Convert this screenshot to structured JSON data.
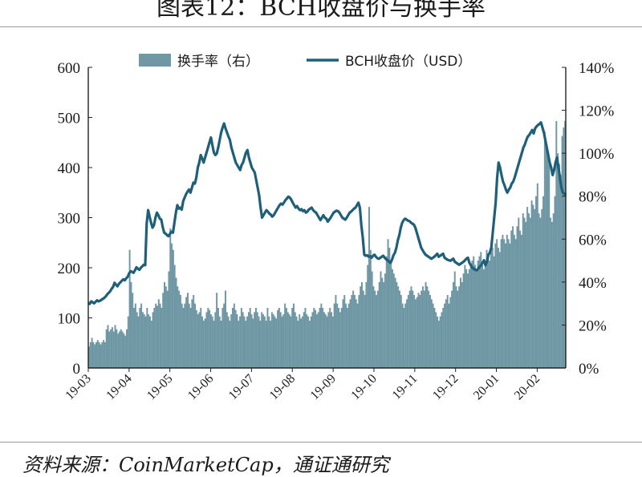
{
  "header": {
    "title": "图表12：BCH收盘价与换手率"
  },
  "footer": {
    "source": "资料来源：CoinMarketCap，通证通研究"
  },
  "chart_data": {
    "type": "bar+line",
    "title": "图表12：BCH收盘价与换手率",
    "legend_placement": "top",
    "x_ticks": [
      "19-03",
      "19-04",
      "19-05",
      "19-06",
      "19-07",
      "19-08",
      "19-09",
      "19-10",
      "19-11",
      "19-12",
      "20-01",
      "20-02"
    ],
    "y_left": {
      "ticks": [
        "0",
        "100",
        "200",
        "300",
        "400",
        "500",
        "600"
      ],
      "range": [
        0,
        600
      ]
    },
    "y_right": {
      "ticks": [
        "0%",
        "20%",
        "40%",
        "60%",
        "80%",
        "100%",
        "120%",
        "140%"
      ],
      "range": [
        0,
        140
      ]
    },
    "grid": false,
    "series": [
      {
        "name": "换手率（右）",
        "type": "bar",
        "axis": "right",
        "color": "#6f97a4",
        "values": [
          10,
          12,
          14,
          12,
          11,
          12,
          13,
          12,
          11,
          12,
          13,
          12,
          18,
          20,
          17,
          18,
          19,
          17,
          20,
          18,
          16,
          17,
          18,
          17,
          16,
          15,
          18,
          24,
          55,
          40,
          35,
          28,
          30,
          26,
          24,
          28,
          30,
          26,
          25,
          24,
          28,
          25,
          24,
          22,
          26,
          28,
          30,
          29,
          32,
          30,
          28,
          35,
          40,
          38,
          36,
          45,
          65,
          58,
          55,
          48,
          42,
          38,
          36,
          34,
          30,
          28,
          30,
          33,
          35,
          30,
          28,
          32,
          34,
          30,
          27,
          25,
          26,
          28,
          24,
          22,
          23,
          26,
          28,
          27,
          25,
          24,
          22,
          26,
          35,
          28,
          24,
          22,
          28,
          30,
          36,
          26,
          24,
          22,
          25,
          28,
          30,
          27,
          25,
          22,
          24,
          28,
          26,
          24,
          22,
          24,
          26,
          28,
          25,
          23,
          26,
          28,
          26,
          24,
          22,
          26,
          25,
          24,
          22,
          28,
          24,
          22,
          26,
          25,
          24,
          23,
          27,
          28,
          26,
          24,
          25,
          30,
          28,
          26,
          25,
          24,
          28,
          30,
          26,
          24,
          22,
          25,
          23,
          24,
          26,
          28,
          25,
          24,
          22,
          24,
          26,
          28,
          27,
          25,
          26,
          28,
          30,
          28,
          26,
          25,
          24,
          26,
          28,
          26,
          24,
          30,
          34,
          30,
          28,
          26,
          28,
          32,
          34,
          30,
          28,
          30,
          32,
          34,
          36,
          34,
          32,
          30,
          34,
          38,
          40,
          36,
          34,
          40,
          48,
          75,
          55,
          45,
          38,
          36,
          34,
          36,
          40,
          45,
          42,
          40,
          44,
          52,
          60,
          56,
          50,
          46,
          44,
          42,
          40,
          38,
          36,
          34,
          30,
          28,
          30,
          32,
          34,
          36,
          38,
          36,
          34,
          32,
          33,
          35,
          34,
          36,
          38,
          36,
          40,
          38,
          36,
          34,
          32,
          30,
          28,
          26,
          24,
          22,
          24,
          26,
          28,
          30,
          32,
          34,
          30,
          33,
          36,
          40,
          45,
          38,
          36,
          38,
          42,
          40,
          44,
          48,
          46,
          44,
          46,
          48,
          50,
          52,
          48,
          46,
          50,
          52,
          54,
          48,
          46,
          50,
          55,
          52,
          50,
          54,
          56,
          52,
          58,
          60,
          56,
          54,
          60,
          62,
          60,
          58,
          62,
          60,
          58,
          64,
          66,
          62,
          60,
          66,
          70,
          64,
          62,
          72,
          70,
          68,
          75,
          72,
          70,
          78,
          76,
          74,
          80,
          86,
          72,
          70,
          74,
          80,
          110,
          105,
          100,
          95,
          70,
          68,
          72,
          80,
          115,
          100,
          95,
          90,
          108,
          112,
          115
        ]
      },
      {
        "name": "BCH收盘价（USD）",
        "type": "line",
        "axis": "left",
        "color": "#1e5f7a",
        "values": [
          130,
          128,
          133,
          131,
          129,
          132,
          135,
          133,
          134,
          136,
          138,
          140,
          143,
          147,
          150,
          153,
          158,
          162,
          170,
          166,
          163,
          168,
          171,
          174,
          177,
          175,
          179,
          182,
          189,
          193,
          192,
          190,
          195,
          201,
          198,
          196,
          200,
          203,
          206,
          205,
          288,
          315,
          302,
          290,
          280,
          285,
          300,
          310,
          305,
          298,
          296,
          281,
          270,
          268,
          265,
          263,
          268,
          272,
          270,
          290,
          310,
          325,
          318,
          320,
          316,
          333,
          340,
          347,
          352,
          356,
          350,
          360,
          370,
          368,
          380,
          400,
          410,
          425,
          418,
          410,
          420,
          430,
          440,
          450,
          460,
          445,
          430,
          425,
          428,
          440,
          455,
          470,
          480,
          488,
          478,
          470,
          462,
          455,
          440,
          430,
          420,
          410,
          405,
          400,
          395,
          405,
          410,
          420,
          430,
          435,
          420,
          410,
          400,
          395,
          390,
          375,
          360,
          345,
          320,
          300,
          305,
          310,
          315,
          312,
          308,
          306,
          302,
          305,
          310,
          315,
          320,
          325,
          328,
          326,
          330,
          335,
          338,
          342,
          340,
          336,
          330,
          325,
          320,
          323,
          318,
          315,
          317,
          313,
          315,
          310,
          312,
          316,
          318,
          320,
          315,
          312,
          310,
          305,
          300,
          295,
          300,
          305,
          300,
          298,
          292,
          296,
          300,
          305,
          310,
          312,
          314,
          313,
          310,
          305,
          300,
          298,
          296,
          300,
          305,
          310,
          312,
          315,
          318,
          320,
          325,
          330,
          320,
          285,
          260,
          226,
          224,
          225,
          222,
          223,
          220,
          224,
          226,
          222,
          219,
          218,
          220,
          222,
          224,
          220,
          217,
          215,
          212,
          210,
          216,
          225,
          230,
          240,
          255,
          265,
          280,
          290,
          295,
          298,
          296,
          294,
          293,
          290,
          288,
          286,
          280,
          270,
          260,
          250,
          240,
          235,
          230,
          226,
          224,
          222,
          220,
          218,
          220,
          222,
          225,
          228,
          222,
          224,
          226,
          228,
          220,
          218,
          216,
          215,
          214,
          216,
          218,
          212,
          210,
          208,
          206,
          208,
          210,
          212,
          215,
          218,
          220,
          210,
          205,
          200,
          198,
          196,
          195,
          198,
          202,
          205,
          210,
          215,
          205,
          212,
          226,
          230,
          240,
          270,
          300,
          330,
          380,
          410,
          400,
          385,
          372,
          365,
          356,
          350,
          356,
          360,
          368,
          372,
          380,
          390,
          400,
          410,
          420,
          430,
          440,
          446,
          455,
          462,
          465,
          470,
          475,
          468,
          478,
          482,
          485,
          487,
          490,
          480,
          470,
          455,
          440,
          425,
          410,
          400,
          385,
          395,
          410,
          420,
          400,
          380,
          360,
          350,
          348,
          345
        ]
      }
    ]
  }
}
